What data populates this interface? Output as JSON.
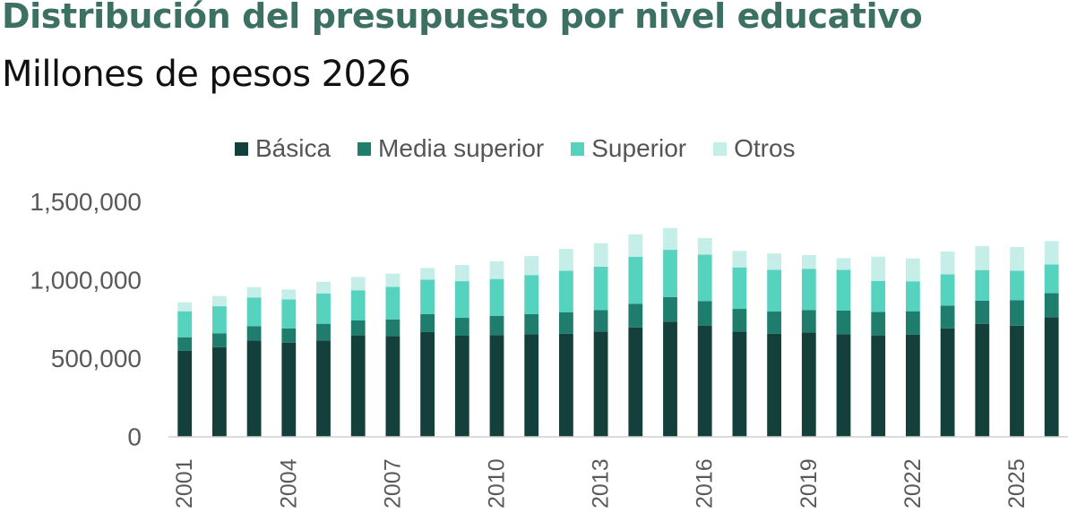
{
  "header": {
    "title": "Distribución del presupuesto por nivel educativo",
    "subtitle": "Millones de pesos 2026"
  },
  "chart_data": {
    "type": "bar",
    "stacked": true,
    "title": "Distribución del presupuesto por nivel educativo",
    "subtitle": "Millones de pesos 2026",
    "xlabel": "",
    "ylabel": "",
    "ylim": [
      0,
      1500000
    ],
    "yticks": [
      0,
      500000,
      1000000,
      1500000
    ],
    "ytick_labels": [
      "0",
      "500,000",
      "1,000,000",
      "1,500,000"
    ],
    "grid": false,
    "legend_position": "top",
    "categories": [
      "2001",
      "2002",
      "2003",
      "2004",
      "2005",
      "2006",
      "2007",
      "2008",
      "2009",
      "2010",
      "2011",
      "2012",
      "2013",
      "2014",
      "2015",
      "2016",
      "2017",
      "2018",
      "2019",
      "2020",
      "2021",
      "2022",
      "2023",
      "2024",
      "2025",
      "2026"
    ],
    "xtick_labels": [
      "2001",
      "2004",
      "2007",
      "2010",
      "2013",
      "2016",
      "2019",
      "2022",
      "2025"
    ],
    "series": [
      {
        "name": "Básica",
        "color": "#13403a",
        "values": [
          546000,
          570000,
          613000,
          599000,
          613000,
          645000,
          641000,
          666000,
          643000,
          647000,
          653000,
          656000,
          670000,
          696000,
          733000,
          706000,
          670000,
          656000,
          664000,
          653000,
          645000,
          649000,
          690000,
          719000,
          707000,
          761000
        ]
      },
      {
        "name": "Media superior",
        "color": "#1e7d6c",
        "values": [
          87000,
          88000,
          91000,
          91000,
          106000,
          95000,
          106000,
          114000,
          114000,
          123000,
          127000,
          137000,
          137000,
          151000,
          157000,
          158000,
          144000,
          141000,
          143000,
          150000,
          150000,
          150000,
          145000,
          147000,
          163000,
          154000
        ]
      },
      {
        "name": "Superior",
        "color": "#55d3be",
        "values": [
          166000,
          173000,
          183000,
          185000,
          194000,
          193000,
          208000,
          221000,
          234000,
          235000,
          250000,
          265000,
          276000,
          300000,
          301000,
          297000,
          265000,
          266000,
          263000,
          260000,
          198000,
          191000,
          200000,
          196000,
          188000,
          183000
        ]
      },
      {
        "name": "Otros",
        "color": "#c6eee8",
        "values": [
          57000,
          65000,
          66000,
          63000,
          73000,
          85000,
          84000,
          74000,
          103000,
          114000,
          121000,
          139000,
          150000,
          143000,
          139000,
          105000,
          105000,
          104000,
          87000,
          75000,
          154000,
          146000,
          145000,
          152000,
          151000,
          149000
        ]
      }
    ]
  }
}
